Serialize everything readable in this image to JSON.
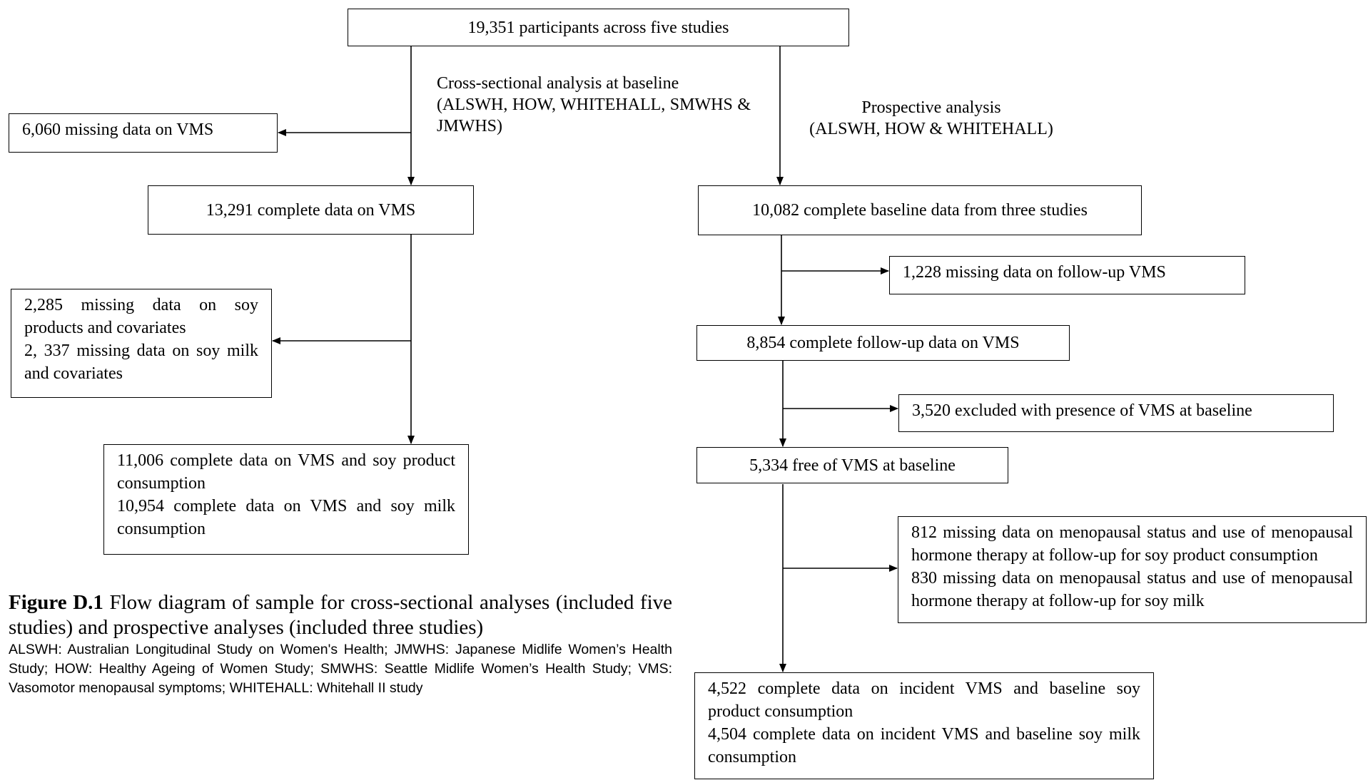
{
  "nodes": [
    {
      "id": "top",
      "lines": [
        "19,351 participants across five studies"
      ]
    },
    {
      "id": "miss-vms",
      "lines": [
        "6,060 missing data on VMS"
      ]
    },
    {
      "id": "complete-vms",
      "lines": [
        "13,291 complete data on VMS"
      ]
    },
    {
      "id": "miss-soy",
      "lines": [
        "2,285 missing data on soy products and covariates",
        "2, 337 missing data on soy milk and covariates"
      ]
    },
    {
      "id": "cross-final",
      "lines": [
        "11,006 complete data on VMS and soy product consumption",
        "10,954 complete data on VMS and soy milk consumption"
      ]
    },
    {
      "id": "baseline",
      "lines": [
        "10,082 complete baseline data from three studies"
      ]
    },
    {
      "id": "miss-follow",
      "lines": [
        "1,228 missing data on follow-up VMS"
      ]
    },
    {
      "id": "follow",
      "lines": [
        "8,854 complete follow-up data on VMS"
      ]
    },
    {
      "id": "excluded",
      "lines": [
        "3,520 excluded with presence of VMS at baseline"
      ]
    },
    {
      "id": "free",
      "lines": [
        "5,334 free of VMS at baseline"
      ]
    },
    {
      "id": "miss-meno",
      "lines": [
        "812 missing data on menopausal status and use of menopausal hormone therapy at follow-up for soy product consumption",
        "830 missing data on menopausal status and use of menopausal hormone therapy at follow-up for soy milk"
      ]
    },
    {
      "id": "prosp-final",
      "lines": [
        "4,522 complete data on incident VMS and baseline soy product consumption",
        "4,504 complete data on incident VMS and baseline soy milk consumption"
      ]
    }
  ],
  "labels": {
    "cross": [
      "Cross-sectional analysis at baseline",
      "(ALSWH, HOW, WHITEHALL, SMWHS & JMWHS)"
    ],
    "prospective": [
      "Prospective analysis",
      "(ALSWH, HOW & WHITEHALL)"
    ]
  },
  "caption": {
    "figure": "Figure D.1",
    "text": "Flow diagram of sample for cross-sectional analyses (included five studies) and prospective analyses (included three studies)",
    "abbreviations": "ALSWH: Australian Longitudinal Study on Women's Health; JMWHS: Japanese Midlife Women’s Health Study; HOW: Healthy Ageing of Women Study; SMWHS: Seattle Midlife Women’s Health Study; VMS: Vasomotor menopausal symptoms; WHITEHALL: Whitehall II study"
  }
}
